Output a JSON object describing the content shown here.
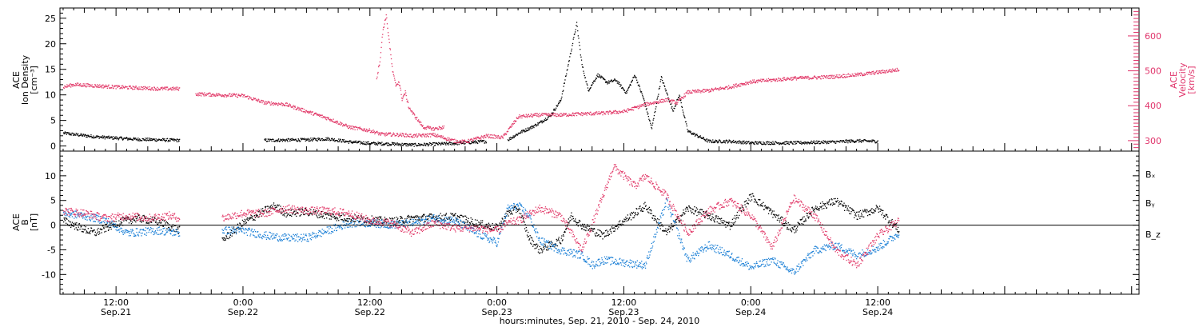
{
  "colors": {
    "black": "#000000",
    "magenta": "#e23b6a",
    "blue": "#1a7fd6"
  },
  "x_axis": {
    "label": "hours:minutes, Sep. 21, 2010 - Sep. 24, 2010",
    "range_hours": [
      6.7,
      108.7
    ],
    "ticks": [
      {
        "hour": 12,
        "time": "12:00",
        "date": "Sep.21"
      },
      {
        "hour": 24,
        "time": "0:00",
        "date": "Sep.22"
      },
      {
        "hour": 36,
        "time": "12:00",
        "date": "Sep.22"
      },
      {
        "hour": 48,
        "time": "0:00",
        "date": "Sep.23"
      },
      {
        "hour": 60,
        "time": "12:00",
        "date": "Sep.23"
      },
      {
        "hour": 72,
        "time": "0:00",
        "date": "Sep.24"
      },
      {
        "hour": 84,
        "time": "12:00",
        "date": "Sep.24"
      }
    ]
  },
  "chart_data": [
    {
      "type": "scatter",
      "panel": "top",
      "ylabel_left": [
        "ACE",
        "Ion Density",
        "[cm⁻³]"
      ],
      "ylabel_right": [
        "ACE",
        "Velocity",
        "[km/s]"
      ],
      "ylim_left": [
        -1,
        27
      ],
      "ylim_right": [
        270,
        680
      ],
      "yticks_left": [
        0,
        5,
        10,
        15,
        20,
        25
      ],
      "yticks_right": [
        300,
        400,
        500,
        600
      ],
      "series": [
        {
          "axis": "left",
          "color": "#000000",
          "x": [
            7,
            10,
            14,
            18,
            26,
            30,
            32,
            34,
            36,
            38,
            40,
            44,
            47,
            49,
            50.2,
            51,
            52,
            53,
            54,
            54.8,
            55.5,
            56,
            56.6,
            57.5,
            58.4,
            59.2,
            60.2,
            61,
            61.8,
            62.6,
            63.5,
            64.6,
            65.2,
            66,
            68,
            70,
            72,
            76,
            80,
            82,
            84
          ],
          "y": [
            2.6,
            1.9,
            1.4,
            1.2,
            1.2,
            1.3,
            1.5,
            0.9,
            0.6,
            0.5,
            0.3,
            0.6,
            1.0,
            1.3,
            2.8,
            3.5,
            4.6,
            6.0,
            9.0,
            17.0,
            24.0,
            16.0,
            11.0,
            14.0,
            12.5,
            13.0,
            10.5,
            14.0,
            9.5,
            3.5,
            13.5,
            7.0,
            10.0,
            3.0,
            1.0,
            1.0,
            0.7,
            0.7,
            0.9,
            1.1,
            1.0
          ],
          "gaps_after_x": [
            18,
            47
          ]
        },
        {
          "axis": "right",
          "color": "#e23b6a",
          "x": [
            7,
            8,
            12,
            16,
            18,
            19.5,
            24,
            26,
            28,
            30,
            32,
            34,
            36,
            37,
            39,
            40,
            42,
            44,
            45,
            47,
            48.5,
            50,
            52,
            54,
            56,
            58,
            60,
            62,
            64,
            65,
            66,
            68,
            70,
            72,
            74,
            76,
            78,
            80,
            82,
            84,
            86
          ],
          "y": [
            455,
            462,
            455,
            450,
            450,
            435,
            430,
            410,
            405,
            385,
            365,
            340,
            330,
            320,
            318,
            315,
            318,
            300,
            298,
            315,
            310,
            370,
            375,
            375,
            378,
            380,
            385,
            405,
            418,
            410,
            440,
            445,
            455,
            470,
            475,
            480,
            482,
            485,
            490,
            497,
            505
          ],
          "gaps_after_x": [
            18
          ]
        },
        {
          "axis": "right",
          "color": "#e23b6a",
          "x": [
            36.6,
            36.9,
            37.2,
            37.5,
            37.8,
            38.1,
            38.4,
            38.7,
            39.0,
            39.3,
            39.6,
            40.0,
            40.5,
            41,
            42,
            43
          ],
          "y": [
            480,
            530,
            620,
            660,
            580,
            500,
            460,
            470,
            420,
            440,
            400,
            380,
            360,
            340,
            335,
            340
          ]
        }
      ]
    },
    {
      "type": "scatter",
      "panel": "bottom",
      "ylabel_left": [
        "ACE",
        "B",
        "[nT]"
      ],
      "ylim": [
        -14,
        15
      ],
      "yticks": [
        -10,
        -5,
        0,
        5,
        10
      ],
      "zero_line": true,
      "series": [
        {
          "name": "Bₓ",
          "color": "#000000",
          "x": [
            7,
            9,
            10,
            12,
            14,
            16,
            18,
            22,
            24,
            26,
            27,
            28,
            30,
            32,
            34,
            36,
            38,
            40,
            44,
            46,
            48,
            49,
            50,
            51,
            52,
            54,
            55,
            56,
            58,
            60,
            62,
            64,
            66,
            68,
            70,
            72,
            74,
            76,
            78,
            80,
            82,
            84,
            86
          ],
          "y": [
            1.0,
            -0.8,
            -1.5,
            0.5,
            1.5,
            0.8,
            -1.0,
            -3.0,
            0.5,
            3.0,
            4.0,
            2.5,
            2.8,
            2.0,
            1.5,
            1.2,
            0.8,
            1.5,
            1.8,
            0.5,
            -0.5,
            2.5,
            3.5,
            -2.5,
            -5.0,
            -3.0,
            2.0,
            0.0,
            -2.0,
            1.0,
            4.0,
            -1.5,
            3.5,
            2.0,
            0.0,
            6.0,
            2.5,
            -1.0,
            3.5,
            5.0,
            2.0,
            3.5,
            -1.0
          ],
          "gaps_after_x": [
            18
          ]
        },
        {
          "name": "Bᵧ",
          "color": "#1a7fd6",
          "x": [
            7,
            9,
            11,
            13,
            16,
            18,
            22,
            24,
            26,
            28,
            30,
            32,
            34,
            36,
            38,
            40,
            42,
            44,
            46,
            48,
            49,
            50,
            51,
            52,
            54,
            56,
            57,
            58,
            60,
            62,
            64,
            66,
            68,
            70,
            72,
            74,
            76,
            78,
            80,
            82,
            84,
            86
          ],
          "y": [
            2.5,
            2.0,
            1.0,
            -1.5,
            -1.0,
            -1.5,
            -1.0,
            -1.0,
            -2.0,
            -2.5,
            -2.5,
            -1.0,
            0.5,
            0.5,
            0.2,
            0.5,
            1.5,
            1.0,
            -1.5,
            -3.5,
            3.5,
            4.0,
            2.0,
            -3.0,
            -5.0,
            -6.0,
            -8.0,
            -7.0,
            -7.5,
            -8.0,
            5.0,
            -7.0,
            -4.0,
            -6.0,
            -8.5,
            -7.0,
            -9.5,
            -5.0,
            -4.0,
            -6.0,
            -4.5,
            -1.5
          ],
          "gaps_after_x": [
            18
          ]
        },
        {
          "name": "B_z",
          "color": "#e23b6a",
          "x": [
            7,
            9,
            11,
            13,
            15,
            17,
            18,
            22,
            24,
            26,
            28,
            30,
            32,
            34,
            36,
            38,
            40,
            42,
            44,
            46,
            48,
            49,
            50,
            52,
            54,
            56,
            58,
            59,
            60,
            61,
            62,
            64,
            66,
            68,
            70,
            72,
            74,
            76,
            78,
            80,
            82,
            84,
            86
          ],
          "y": [
            3.0,
            2.5,
            1.5,
            2.0,
            1.5,
            2.0,
            1.5,
            1.5,
            2.5,
            2.5,
            3.5,
            3.0,
            3.0,
            2.5,
            1.0,
            0.5,
            -1.5,
            0.5,
            -0.5,
            -0.5,
            -1.0,
            0.5,
            1.0,
            3.5,
            2.0,
            -5.0,
            6.0,
            12.0,
            10.0,
            8.0,
            10.0,
            6.0,
            -1.5,
            3.0,
            5.0,
            2.0,
            -4.5,
            5.5,
            2.0,
            -5.0,
            -8.0,
            -2.0,
            1.0
          ],
          "gaps_after_x": [
            18
          ]
        }
      ]
    }
  ]
}
